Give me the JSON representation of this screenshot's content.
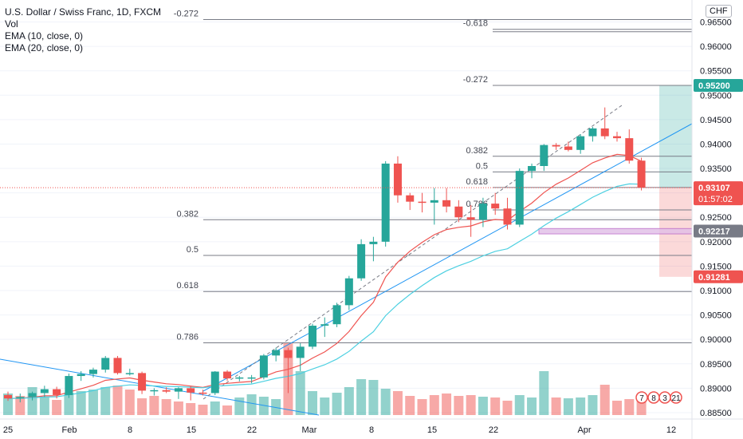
{
  "chart_data": {
    "type": "candlestick",
    "title": "U.S. Dollar / Swiss Franc, 1D, FXCM",
    "indicators": [
      "Vol",
      "EMA (10, close, 0)",
      "EMA (20, close, 0)"
    ],
    "currency": "CHF",
    "ylim": [
      0.8845,
      0.9695
    ],
    "yticks": [
      "0.88500",
      "0.89000",
      "0.89500",
      "0.90000",
      "0.90500",
      "0.91000",
      "0.91500",
      "0.92000",
      "0.92500",
      "0.93000",
      "0.93500",
      "0.94000",
      "0.94500",
      "0.95000",
      "0.95500",
      "0.96000",
      "0.96500"
    ],
    "xticks": [
      "25",
      "Feb",
      "8",
      "15",
      "22",
      "Mar",
      "8",
      "15",
      "22",
      "Apr",
      "12"
    ],
    "candles": [
      [
        0.8886,
        0.8893,
        0.8874,
        0.8879
      ],
      [
        0.8879,
        0.8889,
        0.8871,
        0.8882
      ],
      [
        0.8882,
        0.8893,
        0.8875,
        0.889
      ],
      [
        0.889,
        0.8905,
        0.8882,
        0.8898
      ],
      [
        0.8898,
        0.8903,
        0.8879,
        0.8886
      ],
      [
        0.8886,
        0.893,
        0.888,
        0.8925
      ],
      [
        0.8925,
        0.8935,
        0.8915,
        0.8929
      ],
      [
        0.8929,
        0.8942,
        0.8922,
        0.8938
      ],
      [
        0.8938,
        0.8966,
        0.8932,
        0.8962
      ],
      [
        0.8962,
        0.8966,
        0.8928,
        0.8931
      ],
      [
        0.8931,
        0.894,
        0.8926,
        0.8931
      ],
      [
        0.8931,
        0.8934,
        0.8888,
        0.8895
      ],
      [
        0.8895,
        0.89,
        0.8885,
        0.8896
      ],
      [
        0.8896,
        0.8902,
        0.889,
        0.8893
      ],
      [
        0.8893,
        0.8902,
        0.8878,
        0.89
      ],
      [
        0.89,
        0.8905,
        0.8875,
        0.8891
      ],
      [
        0.8891,
        0.8897,
        0.8885,
        0.889
      ],
      [
        0.889,
        0.8935,
        0.8886,
        0.8934
      ],
      [
        0.8934,
        0.8937,
        0.8915,
        0.892
      ],
      [
        0.892,
        0.8925,
        0.8914,
        0.8922
      ],
      [
        0.8922,
        0.8927,
        0.891,
        0.8922
      ],
      [
        0.8922,
        0.897,
        0.8918,
        0.8967
      ],
      [
        0.8967,
        0.8983,
        0.8955,
        0.8978
      ],
      [
        0.8978,
        0.8983,
        0.889,
        0.8962
      ],
      [
        0.8962,
        0.8992,
        0.8935,
        0.8985
      ],
      [
        0.8985,
        0.9032,
        0.898,
        0.9028
      ],
      [
        0.9028,
        0.9045,
        0.9005,
        0.9031
      ],
      [
        0.9031,
        0.9075,
        0.9025,
        0.907
      ],
      [
        0.907,
        0.913,
        0.906,
        0.9125
      ],
      [
        0.9125,
        0.9205,
        0.912,
        0.9195
      ],
      [
        0.9195,
        0.921,
        0.916,
        0.92
      ],
      [
        0.92,
        0.9365,
        0.919,
        0.936
      ],
      [
        0.936,
        0.9375,
        0.928,
        0.9295
      ],
      [
        0.9295,
        0.93,
        0.9265,
        0.9282
      ],
      [
        0.9282,
        0.93,
        0.926,
        0.928
      ],
      [
        0.928,
        0.931,
        0.9235,
        0.9285
      ],
      [
        0.9285,
        0.931,
        0.926,
        0.9272
      ],
      [
        0.9272,
        0.9285,
        0.924,
        0.925
      ],
      [
        0.925,
        0.9275,
        0.921,
        0.9245
      ],
      [
        0.9245,
        0.929,
        0.923,
        0.9278
      ],
      [
        0.9278,
        0.93,
        0.9255,
        0.9268
      ],
      [
        0.9268,
        0.929,
        0.9225,
        0.9235
      ],
      [
        0.9235,
        0.935,
        0.923,
        0.9345
      ],
      [
        0.9345,
        0.936,
        0.933,
        0.9355
      ],
      [
        0.9355,
        0.94,
        0.9345,
        0.9398
      ],
      [
        0.9398,
        0.9402,
        0.9388,
        0.9395
      ],
      [
        0.9395,
        0.9405,
        0.9385,
        0.9388
      ],
      [
        0.9388,
        0.942,
        0.938,
        0.9416
      ],
      [
        0.9416,
        0.9435,
        0.9405,
        0.9432
      ],
      [
        0.9432,
        0.9475,
        0.941,
        0.9416
      ],
      [
        0.9416,
        0.9425,
        0.9405,
        0.9412
      ],
      [
        0.9412,
        0.943,
        0.936,
        0.9366
      ],
      [
        0.9366,
        0.9372,
        0.9305,
        0.9311
      ]
    ],
    "volume": [
      [
        27,
        "up"
      ],
      [
        24,
        "down"
      ],
      [
        35,
        "up"
      ],
      [
        22,
        "up"
      ],
      [
        19,
        "down"
      ],
      [
        28,
        "up"
      ],
      [
        30,
        "up"
      ],
      [
        32,
        "up"
      ],
      [
        35,
        "up"
      ],
      [
        37,
        "down"
      ],
      [
        32,
        "down"
      ],
      [
        21,
        "down"
      ],
      [
        24,
        "down"
      ],
      [
        20,
        "down"
      ],
      [
        17,
        "down"
      ],
      [
        15,
        "down"
      ],
      [
        13,
        "down"
      ],
      [
        17,
        "up"
      ],
      [
        12,
        "down"
      ],
      [
        22,
        "up"
      ],
      [
        26,
        "up"
      ],
      [
        23,
        "up"
      ],
      [
        20,
        "up"
      ],
      [
        90,
        "down"
      ],
      [
        55,
        "up"
      ],
      [
        30,
        "up"
      ],
      [
        22,
        "up"
      ],
      [
        28,
        "up"
      ],
      [
        35,
        "up"
      ],
      [
        45,
        "up"
      ],
      [
        44,
        "up"
      ],
      [
        33,
        "up"
      ],
      [
        30,
        "down"
      ],
      [
        24,
        "down"
      ],
      [
        20,
        "down"
      ],
      [
        25,
        "down"
      ],
      [
        27,
        "down"
      ],
      [
        24,
        "down"
      ],
      [
        25,
        "down"
      ],
      [
        23,
        "up"
      ],
      [
        22,
        "down"
      ],
      [
        18,
        "down"
      ],
      [
        25,
        "up"
      ],
      [
        22,
        "up"
      ],
      [
        55,
        "up"
      ],
      [
        22,
        "down"
      ],
      [
        21,
        "up"
      ],
      [
        22,
        "up"
      ],
      [
        25,
        "up"
      ],
      [
        38,
        "down"
      ],
      [
        18,
        "down"
      ],
      [
        20,
        "down"
      ],
      [
        23,
        "down"
      ]
    ],
    "fibonacci": [
      {
        "label": "-0.272",
        "value": 0.9655,
        "from": "-0.272 (left)"
      },
      {
        "label": "0.382",
        "value": 0.9245
      },
      {
        "label": "0.5",
        "value": 0.9172
      },
      {
        "label": "0.618",
        "value": 0.9098
      },
      {
        "label": "0.786",
        "value": 0.8993
      },
      {
        "label": "-0.618",
        "value": 0.9635
      },
      {
        "label": "-0.272",
        "value": 0.952
      },
      {
        "label": "0.382",
        "value": 0.9375
      },
      {
        "label": "0.5",
        "value": 0.9343
      },
      {
        "label": "0.618",
        "value": 0.9311
      },
      {
        "label": "0.786",
        "value": 0.9265
      }
    ],
    "price_labels": [
      {
        "text": "0.95200",
        "value": 0.952,
        "color": "#26a69a"
      },
      {
        "text": "0.93107",
        "value": 0.93107,
        "color": "#ef5350",
        "extra": "01:57:02"
      },
      {
        "text": "0.92217",
        "value": 0.92217,
        "color": "#787b86"
      },
      {
        "text": "0.91281",
        "value": 0.91281,
        "color": "#ef5350"
      }
    ],
    "position": {
      "target": 0.952,
      "entry": 0.93107,
      "stop": 0.91281
    },
    "colors": {
      "up": "#26a69a",
      "down": "#ef5350",
      "ema10": "#ef5350",
      "ema20": "#4dd0e1",
      "trend": "#2196f3"
    },
    "badges": [
      "7",
      "8",
      "3",
      "21"
    ]
  }
}
